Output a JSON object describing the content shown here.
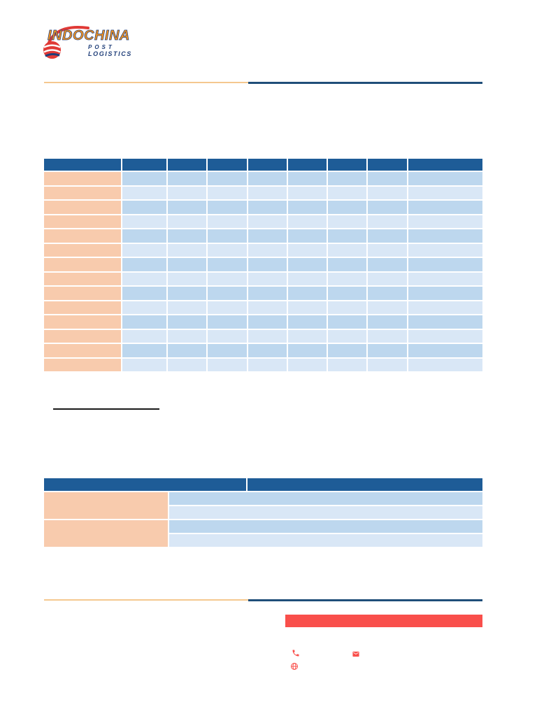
{
  "logo": {
    "title": "INDOCHINA",
    "subtitle_line1": "POST",
    "subtitle_line2": "LOGISTICS"
  },
  "colors": {
    "table_header_blue": "#1E5C97",
    "divider_navy": "#1F4E79",
    "divider_orange": "#F5C88F",
    "row_label_orange": "#F8CBAD",
    "row_blue": "#BDD7EE",
    "row_blue_light": "#D9E7F6",
    "accent_red": "#F94F4B",
    "logo_orange": "#F7941D",
    "logo_navy": "#27457E"
  },
  "rate_table": {
    "columns": [
      "",
      "",
      "",
      "",
      "",
      "",
      "",
      "",
      ""
    ],
    "rows": [
      [
        "",
        "",
        "",
        "",
        "",
        "",
        "",
        "",
        ""
      ],
      [
        "",
        "",
        "",
        "",
        "",
        "",
        "",
        "",
        ""
      ],
      [
        "",
        "",
        "",
        "",
        "",
        "",
        "",
        "",
        ""
      ],
      [
        "",
        "",
        "",
        "",
        "",
        "",
        "",
        "",
        ""
      ],
      [
        "",
        "",
        "",
        "",
        "",
        "",
        "",
        "",
        ""
      ],
      [
        "",
        "",
        "",
        "",
        "",
        "",
        "",
        "",
        ""
      ],
      [
        "",
        "",
        "",
        "",
        "",
        "",
        "",
        "",
        ""
      ],
      [
        "",
        "",
        "",
        "",
        "",
        "",
        "",
        "",
        ""
      ],
      [
        "",
        "",
        "",
        "",
        "",
        "",
        "",
        "",
        ""
      ],
      [
        "",
        "",
        "",
        "",
        "",
        "",
        "",
        "",
        ""
      ],
      [
        "",
        "",
        "",
        "",
        "",
        "",
        "",
        "",
        ""
      ],
      [
        "",
        "",
        "",
        "",
        "",
        "",
        "",
        "",
        ""
      ],
      [
        "",
        "",
        "",
        "",
        "",
        "",
        "",
        "",
        ""
      ],
      [
        "",
        "",
        "",
        "",
        "",
        "",
        "",
        "",
        ""
      ]
    ]
  },
  "note": {
    "text": ""
  },
  "info_table": {
    "header": [
      "",
      ""
    ],
    "labels": [
      "",
      ""
    ],
    "values": [
      "",
      "",
      "",
      ""
    ]
  },
  "footer": {
    "highlight_text": "",
    "icons": [
      "phone-icon",
      "mail-icon",
      "globe-icon"
    ]
  }
}
